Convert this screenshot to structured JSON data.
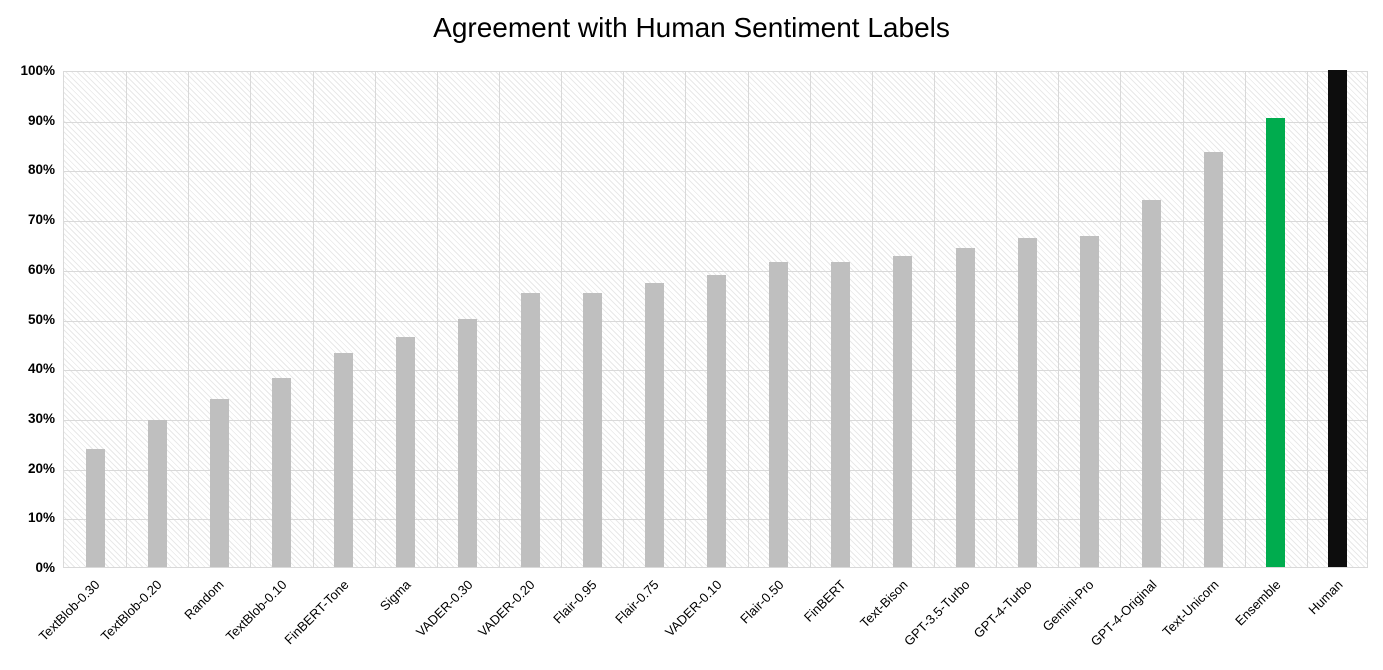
{
  "chart": {
    "title": "Agreement with Human Sentiment Labels"
  },
  "chart_data": {
    "type": "bar",
    "title": "Agreement with Human Sentiment Labels",
    "categories": [
      "TextBlob-0.30",
      "TextBlob-0.20",
      "Random",
      "TextBlob-0.10",
      "FinBERT-Tone",
      "Sigma",
      "VADER-0.30",
      "VADER-0.20",
      "Flair-0.95",
      "Flair-0.75",
      "VADER-0.10",
      "Flair-0.50",
      "FinBERT",
      "Text-Bison",
      "GPT-3.5-Turbo",
      "GPT-4-Turbo",
      "Gemini-Pro",
      "GPT-4-Original",
      "Text-Unicorn",
      "Ensemble",
      "Human"
    ],
    "values": [
      23.7,
      29.6,
      33.9,
      38.0,
      43.0,
      46.2,
      49.9,
      55.2,
      55.2,
      57.1,
      58.8,
      61.3,
      61.3,
      62.6,
      64.2,
      66.1,
      66.7,
      73.8,
      83.5,
      90.4,
      100.0
    ],
    "bar_colors": [
      "#bfbfbf",
      "#bfbfbf",
      "#bfbfbf",
      "#bfbfbf",
      "#bfbfbf",
      "#bfbfbf",
      "#bfbfbf",
      "#bfbfbf",
      "#bfbfbf",
      "#bfbfbf",
      "#bfbfbf",
      "#bfbfbf",
      "#bfbfbf",
      "#bfbfbf",
      "#bfbfbf",
      "#bfbfbf",
      "#bfbfbf",
      "#bfbfbf",
      "#bfbfbf",
      "#00ac4e",
      "#0d0d0d"
    ],
    "highlighted_bars": {
      "Ensemble": "#00ac4e",
      "Human": "#0d0d0d"
    },
    "default_bar_color": "#bfbfbf",
    "xlabel": "",
    "ylabel": "",
    "ylim": [
      0,
      100
    ],
    "yticks": [
      0,
      10,
      20,
      30,
      40,
      50,
      60,
      70,
      80,
      90,
      100
    ],
    "ytick_labels": [
      "0%",
      "10%",
      "20%",
      "30%",
      "40%",
      "50%",
      "60%",
      "70%",
      "80%",
      "90%",
      "100%"
    ],
    "grid": true,
    "grid_color": "#d9d9d9",
    "plot_background": "diagonal-hatch",
    "hatch_color": "#e9e9e9",
    "legend": "none"
  }
}
